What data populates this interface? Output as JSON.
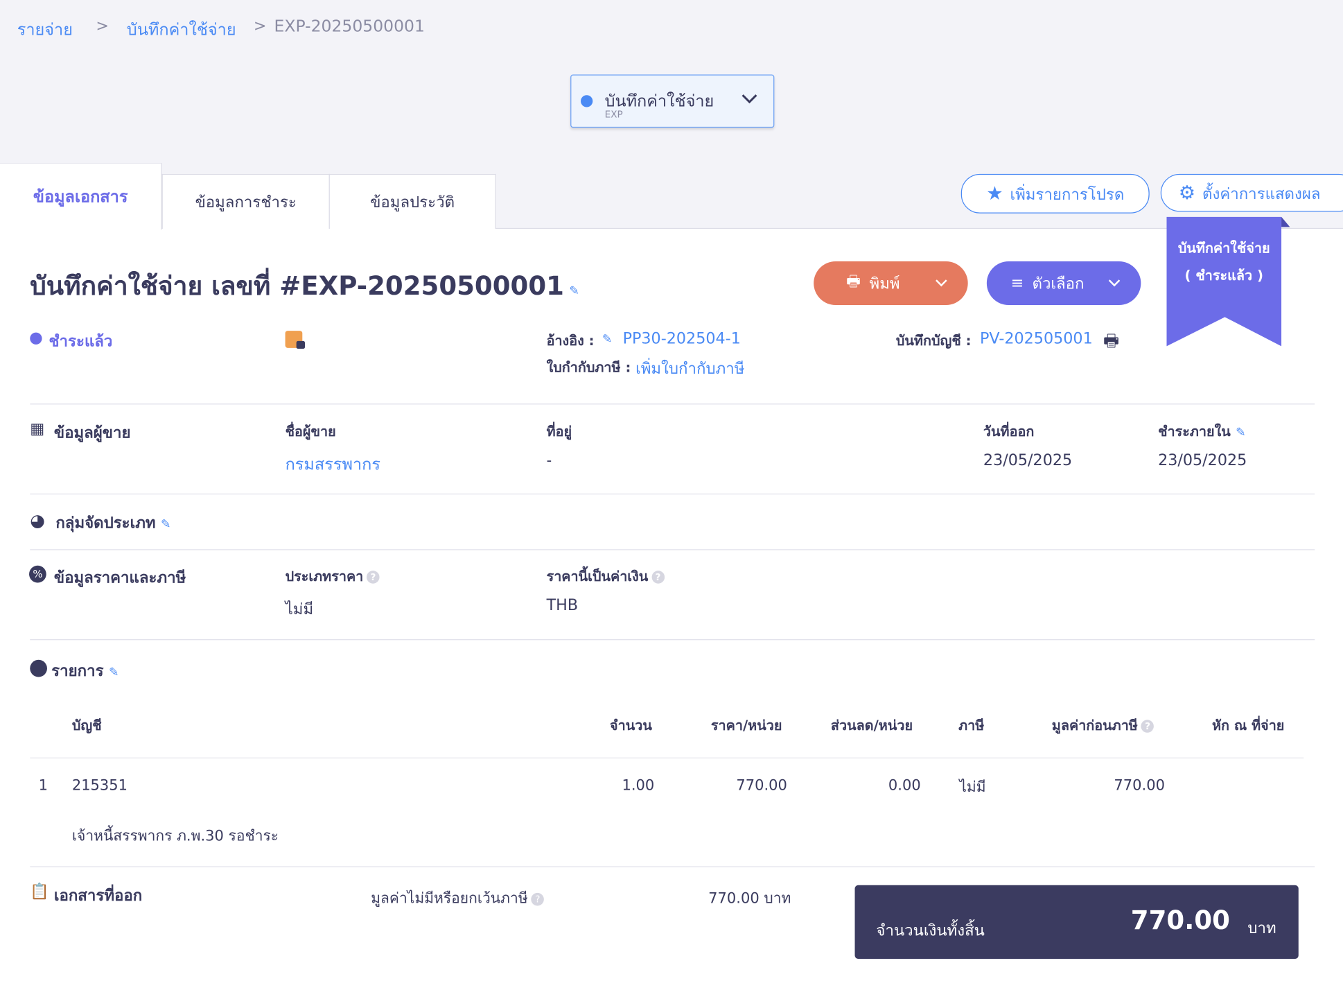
{
  "breadcrumb": {
    "items": [
      "รายจ่าย",
      "บันทึกค่าใช้จ่าย"
    ],
    "current": "EXP-20250500001",
    "separator": ">"
  },
  "doc_type": {
    "label": "บันทึกค่าใช้จ่าย",
    "code": "EXP"
  },
  "tabs": [
    {
      "label": "ข้อมูลเอกสาร",
      "active": true
    },
    {
      "label": "ข้อมูลการชำระ"
    },
    {
      "label": "ข้อมูลประวัติ"
    }
  ],
  "actions": {
    "favorite": "เพิ่มรายการโปรด",
    "display_settings": "ตั้งค่าการแสดงผล",
    "print": "พิมพ์",
    "options": "ตัวเลือก"
  },
  "ribbon": {
    "line1": "บันทึกค่าใช้จ่าย",
    "line2": "( ชำระแล้ว )"
  },
  "title": "บันทึกค่าใช้จ่าย เลขที่ #EXP-20250500001",
  "status": "ชำระแล้ว",
  "reference": {
    "label": "อ้างอิง :",
    "value": "PP30-202504-1"
  },
  "tax_invoice": {
    "label": "ใบกำกับภาษี :",
    "value": "เพิ่มใบกำกับภาษี"
  },
  "journal": {
    "label": "บันทึกบัญชี :",
    "value": "PV-202505001"
  },
  "vendor": {
    "section": "ข้อมูลผู้ขาย",
    "name_label": "ชื่อผู้ขาย",
    "name": "กรมสรรพากร",
    "address_label": "ที่อยู่",
    "address": "-",
    "issue_label": "วันที่ออก",
    "issue_date": "23/05/2025",
    "due_label": "ชำระภายใน",
    "due_date": "23/05/2025"
  },
  "category": {
    "section": "กลุ่มจัดประเภท"
  },
  "pricing": {
    "section": "ข้อมูลราคาและภาษี",
    "price_type_label": "ประเภทราคา",
    "price_type": "ไม่มี",
    "currency_label": "ราคานี้เป็นค่าเงิน",
    "currency": "THB"
  },
  "items": {
    "section": "รายการ",
    "columns": [
      "บัญชี",
      "จำนวน",
      "ราคา/หน่วย",
      "ส่วนลด/หน่วย",
      "ภาษี",
      "มูลค่าก่อนภาษี",
      "หัก ณ ที่จ่าย"
    ],
    "rows": [
      {
        "no": "1",
        "account": "215351",
        "qty": "1.00",
        "price": "770.00",
        "discount": "0.00",
        "tax": "ไม่มี",
        "pretax": "770.00",
        "wht": "",
        "description": "เจ้าหนี้สรรพากร ภ.พ.30 รอชำระ"
      }
    ]
  },
  "summary": {
    "section": "เอกสารที่ออก",
    "exempt_label": "มูลค่าไม่มีหรือยกเว้นภาษี",
    "exempt_value": "770.00 บาท",
    "total_label": "จำนวนเงินทั้งสิ้น",
    "total_value": "770.00",
    "currency": "บาท"
  },
  "colors": {
    "primary": "#4a8af4",
    "purple": "#6c6ce8",
    "orange": "#e57a5f",
    "navy": "#3a3b5e"
  }
}
